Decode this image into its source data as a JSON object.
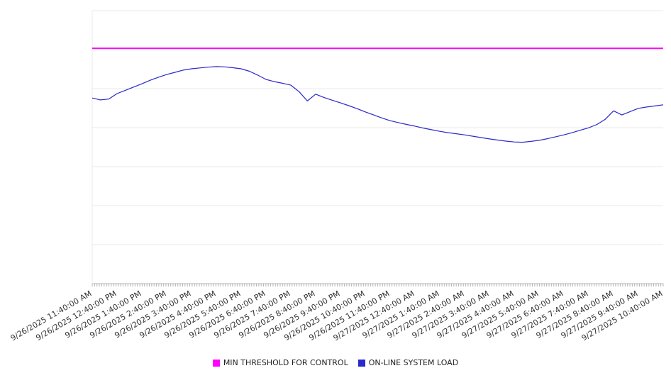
{
  "legend": {
    "threshold_label": "MIN THRESHOLD FOR CONTROL",
    "load_label": "ON-LINE SYSTEM LOAD"
  },
  "colors": {
    "threshold": "#ff00ff",
    "load": "#2929cc",
    "grid": "#e8e8e8",
    "axis": "#b3b3b3",
    "tick_label": "#333333"
  },
  "chart_data": {
    "type": "line",
    "title": "",
    "xlabel": "",
    "ylabel": "",
    "ylim": [
      0,
      100
    ],
    "grid": "horizontal",
    "legend_position": "bottom",
    "x_labels": [
      "9/26/2025 11:40:00 AM",
      "9/26/2025 12:40:00 PM",
      "9/26/2025 1:40:00 PM",
      "9/26/2025 2:40:00 PM",
      "9/26/2025 3:40:00 PM",
      "9/26/2025 4:40:00 PM",
      "9/26/2025 5:40:00 PM",
      "9/26/2025 6:40:00 PM",
      "9/26/2025 7:40:00 PM",
      "9/26/2025 8:40:00 PM",
      "9/26/2025 9:40:00 PM",
      "9/26/2025 10:40:00 PM",
      "9/26/2025 11:40:00 PM",
      "9/27/2025 12:40:00 AM",
      "9/27/2025 1:40:00 AM",
      "9/27/2025 2:40:00 AM",
      "9/27/2025 3:40:00 AM",
      "9/27/2025 4:40:00 AM",
      "9/27/2025 5:40:00 AM",
      "9/27/2025 6:40:00 AM",
      "9/27/2025 7:40:00 AM",
      "9/27/2025 8:40:00 AM",
      "9/27/2025 9:40:00 AM",
      "9/27/2025 10:40:00 AM"
    ],
    "series": [
      {
        "name": "MIN THRESHOLD FOR CONTROL",
        "color": "#ff00ff",
        "constant": 86.2
      },
      {
        "name": "ON-LINE SYSTEM LOAD",
        "color": "#2929cc",
        "values": [
          68.0,
          67.3,
          67.6,
          69.6,
          70.8,
          72.0,
          73.2,
          74.5,
          75.6,
          76.6,
          77.4,
          78.2,
          78.7,
          79.0,
          79.3,
          79.5,
          79.4,
          79.1,
          78.7,
          77.8,
          76.4,
          74.8,
          74.0,
          73.4,
          72.7,
          70.3,
          66.9,
          69.4,
          68.2,
          67.2,
          66.2,
          65.2,
          64.1,
          62.9,
          61.8,
          60.7,
          59.7,
          59.0,
          58.3,
          57.7,
          57.0,
          56.4,
          55.8,
          55.3,
          54.9,
          54.5,
          54.0,
          53.5,
          53.0,
          52.6,
          52.2,
          51.9,
          51.8,
          52.1,
          52.5,
          53.1,
          53.8,
          54.5,
          55.3,
          56.2,
          57.1,
          58.3,
          60.2,
          63.3,
          61.8,
          63.0,
          64.2,
          64.7,
          65.1,
          65.5
        ]
      }
    ]
  }
}
